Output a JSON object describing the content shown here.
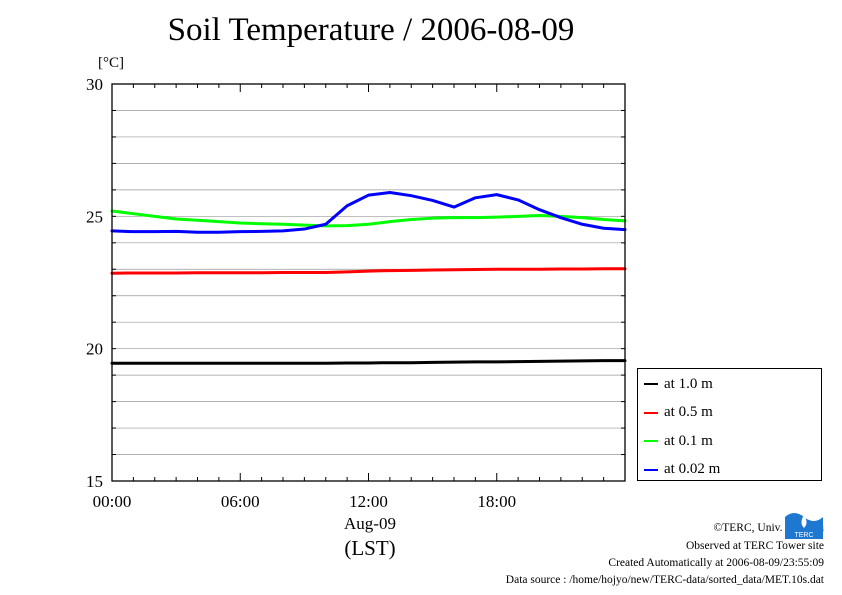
{
  "chart_data": {
    "type": "line",
    "title": "Soil Temperature / 2006-08-09",
    "ylabel": "[°C]",
    "xlabel": "(LST)",
    "x_date_label": "Aug-09",
    "xlim": [
      "00:00",
      "24:00"
    ],
    "ylim": [
      15,
      30
    ],
    "yticks": [
      "30",
      "25",
      "20",
      "15"
    ],
    "xticks": [
      "00:00",
      "06:00",
      "12:00",
      "18:00"
    ],
    "grid": true,
    "legend_position": "right-bottom, outside plot",
    "x": [
      "00:00",
      "01:00",
      "02:00",
      "03:00",
      "04:00",
      "05:00",
      "06:00",
      "07:00",
      "08:00",
      "09:00",
      "10:00",
      "11:00",
      "12:00",
      "13:00",
      "14:00",
      "15:00",
      "16:00",
      "17:00",
      "18:00",
      "19:00",
      "20:00",
      "21:00",
      "22:00",
      "23:00",
      "24:00"
    ],
    "series": [
      {
        "name": "at 1.0 m",
        "color": "#000000",
        "values": [
          19.45,
          19.45,
          19.45,
          19.45,
          19.45,
          19.45,
          19.45,
          19.45,
          19.45,
          19.45,
          19.45,
          19.46,
          19.46,
          19.47,
          19.47,
          19.48,
          19.49,
          19.5,
          19.5,
          19.51,
          19.52,
          19.53,
          19.54,
          19.55,
          19.55
        ]
      },
      {
        "name": "at 0.5 m",
        "color": "#ff0000",
        "values": [
          22.85,
          22.86,
          22.86,
          22.86,
          22.87,
          22.87,
          22.87,
          22.87,
          22.88,
          22.88,
          22.88,
          22.9,
          22.93,
          22.95,
          22.96,
          22.97,
          22.98,
          22.99,
          23.0,
          23.0,
          23.0,
          23.01,
          23.01,
          23.02,
          23.02
        ]
      },
      {
        "name": "at 0.1 m",
        "color": "#00ff00",
        "values": [
          25.2,
          25.1,
          25.0,
          24.9,
          24.85,
          24.8,
          24.75,
          24.72,
          24.7,
          24.67,
          24.64,
          24.65,
          24.7,
          24.8,
          24.88,
          24.93,
          24.95,
          24.95,
          24.97,
          25.0,
          25.03,
          25.0,
          24.95,
          24.88,
          24.83
        ]
      },
      {
        "name": "at 0.02 m",
        "color": "#0000ff",
        "values": [
          24.45,
          24.42,
          24.42,
          24.43,
          24.4,
          24.4,
          24.42,
          24.43,
          24.45,
          24.52,
          24.7,
          25.4,
          25.8,
          25.9,
          25.78,
          25.6,
          25.35,
          25.7,
          25.82,
          25.62,
          25.25,
          24.95,
          24.7,
          24.55,
          24.5
        ]
      }
    ]
  },
  "credits": {
    "copyright": "©TERC, Univ. Tsukuba",
    "observed": "Observed at TERC Tower site",
    "created": "Created Automatically at 2006-08-09/23:55:09",
    "source": "Data source : /home/hojyo/new/TERC-data/sorted_data/MET.10s.dat"
  },
  "logo": {
    "text": "TERC",
    "color": "#1e78d2"
  }
}
